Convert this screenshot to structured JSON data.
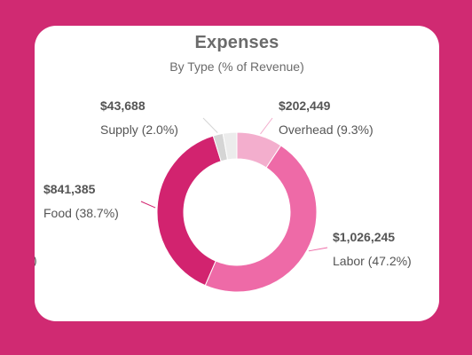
{
  "chart_data": {
    "type": "pie",
    "title": "Expenses",
    "subtitle": "By Type (% of Revenue)",
    "donut": true,
    "slices": [
      {
        "name": "Overhead",
        "value": 202449,
        "value_label": "$202,449",
        "percent_label": "Overhead (9.3%)",
        "percent": 9.3,
        "color": "#f3aecd"
      },
      {
        "name": "Labor",
        "value": 1026245,
        "value_label": "$1,026,245",
        "percent_label": "Labor (47.2%)",
        "percent": 47.2,
        "color": "#ee6aa7"
      },
      {
        "name": "Food",
        "value": 841385,
        "value_label": "$841,385",
        "percent_label": "Food (38.7%)",
        "percent": 38.7,
        "color": "#d2236f"
      },
      {
        "name": "Supply",
        "value": 43688,
        "value_label": "$43,688",
        "percent_label": "Supply (2.0%)",
        "percent": 2.0,
        "color": "#d5d5d5"
      }
    ],
    "remaining_percent": 2.8,
    "remaining_color": "#ececec",
    "cropped_label_fragment": ")",
    "legend": "none"
  },
  "colors": {
    "background": "#d02a72",
    "card": "#ffffff",
    "text": "#555555"
  }
}
